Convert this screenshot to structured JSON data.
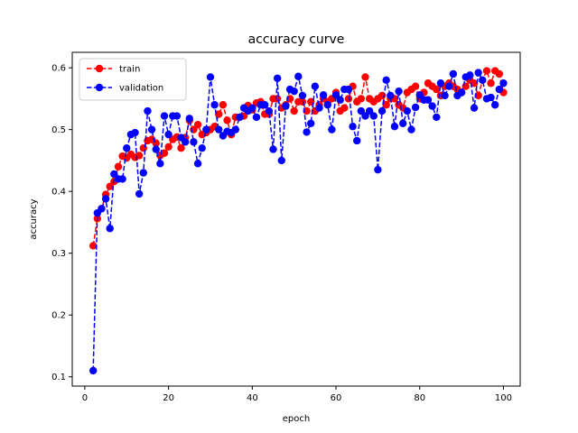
{
  "chart_data": {
    "type": "line",
    "title": "accuracy curve",
    "xlabel": "epoch",
    "ylabel": "accuracy",
    "xlim": [
      -3,
      104
    ],
    "ylim": [
      0.085,
      0.625
    ],
    "xticks": [
      0,
      20,
      40,
      60,
      80,
      100
    ],
    "yticks": [
      0.1,
      0.2,
      0.3,
      0.4,
      0.5,
      0.6
    ],
    "ytick_labels": [
      "0.1",
      "0.2",
      "0.3",
      "0.4",
      "0.5",
      "0.6"
    ],
    "grid": false,
    "legend": "upper left",
    "x": [
      2,
      3,
      4,
      5,
      6,
      7,
      8,
      9,
      10,
      11,
      12,
      13,
      14,
      15,
      16,
      17,
      18,
      19,
      20,
      21,
      22,
      23,
      24,
      25,
      26,
      27,
      28,
      29,
      30,
      31,
      32,
      33,
      34,
      35,
      36,
      37,
      38,
      39,
      40,
      41,
      42,
      43,
      44,
      45,
      46,
      47,
      48,
      49,
      50,
      51,
      52,
      53,
      54,
      55,
      56,
      57,
      58,
      59,
      60,
      61,
      62,
      63,
      64,
      65,
      66,
      67,
      68,
      69,
      70,
      71,
      72,
      73,
      74,
      75,
      76,
      77,
      78,
      79,
      80,
      81,
      82,
      83,
      84,
      85,
      86,
      87,
      88,
      89,
      90,
      91,
      92,
      93,
      94,
      95,
      96,
      97,
      98,
      99,
      100
    ],
    "series": [
      {
        "name": "train",
        "color": "#ff0000",
        "values": [
          0.312,
          0.356,
          0.372,
          0.395,
          0.408,
          0.416,
          0.44,
          0.457,
          0.454,
          0.46,
          0.455,
          0.458,
          0.47,
          0.482,
          0.484,
          0.478,
          0.458,
          0.462,
          0.472,
          0.484,
          0.488,
          0.47,
          0.487,
          0.515,
          0.5,
          0.508,
          0.492,
          0.495,
          0.5,
          0.505,
          0.525,
          0.54,
          0.515,
          0.492,
          0.52,
          0.52,
          0.522,
          0.539,
          0.532,
          0.543,
          0.545,
          0.525,
          0.525,
          0.55,
          0.55,
          0.535,
          0.54,
          0.55,
          0.53,
          0.545,
          0.545,
          0.53,
          0.545,
          0.53,
          0.54,
          0.55,
          0.545,
          0.55,
          0.56,
          0.53,
          0.535,
          0.55,
          0.57,
          0.545,
          0.55,
          0.585,
          0.55,
          0.545,
          0.55,
          0.555,
          0.54,
          0.55,
          0.55,
          0.54,
          0.535,
          0.56,
          0.565,
          0.57,
          0.55,
          0.56,
          0.575,
          0.57,
          0.565,
          0.555,
          0.57,
          0.575,
          0.57,
          0.565,
          0.56,
          0.57,
          0.58,
          0.575,
          0.555,
          0.58,
          0.595,
          0.575,
          0.595,
          0.59,
          0.56
        ]
      },
      {
        "name": "validation",
        "color": "#0000ff",
        "values": [
          0.11,
          0.365,
          0.372,
          0.388,
          0.34,
          0.428,
          0.42,
          0.42,
          0.47,
          0.492,
          0.495,
          0.396,
          0.43,
          0.53,
          0.5,
          0.468,
          0.445,
          0.522,
          0.492,
          0.522,
          0.522,
          0.487,
          0.48,
          0.518,
          0.48,
          0.445,
          0.47,
          0.5,
          0.585,
          0.54,
          0.5,
          0.49,
          0.497,
          0.495,
          0.5,
          0.52,
          0.535,
          0.53,
          0.535,
          0.52,
          0.54,
          0.54,
          0.53,
          0.468,
          0.583,
          0.45,
          0.538,
          0.565,
          0.562,
          0.586,
          0.555,
          0.496,
          0.51,
          0.57,
          0.535,
          0.556,
          0.54,
          0.5,
          0.556,
          0.548,
          0.565,
          0.565,
          0.505,
          0.482,
          0.53,
          0.522,
          0.53,
          0.522,
          0.435,
          0.53,
          0.58,
          0.555,
          0.505,
          0.562,
          0.51,
          0.53,
          0.5,
          0.536,
          0.556,
          0.548,
          0.548,
          0.538,
          0.52,
          0.575,
          0.555,
          0.57,
          0.59,
          0.555,
          0.56,
          0.585,
          0.588,
          0.535,
          0.592,
          0.58,
          0.55,
          0.552,
          0.54,
          0.565,
          0.575
        ]
      }
    ]
  }
}
